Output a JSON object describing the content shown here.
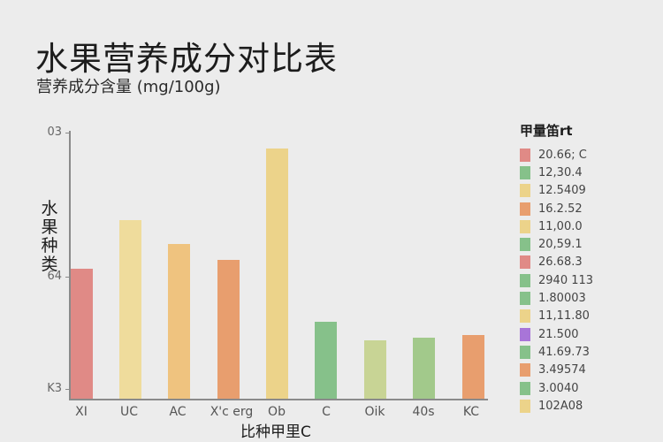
{
  "title": "水果营养成分对比表",
  "subtitle": "营养成分含量 (mg/100g)",
  "chart_data": {
    "type": "bar",
    "title": "水果营养成分对比表",
    "subtitle": "营养成分含量 (mg/100g)",
    "xlabel": "比种甲里C",
    "ylabel": "水果种类",
    "categories": [
      "XI",
      "UC",
      "AC",
      "X'c erg",
      "Ob",
      "C",
      "Oik",
      "40s",
      "KC"
    ],
    "values": [
      49,
      67,
      58,
      52,
      94,
      29,
      22,
      23,
      24
    ],
    "bar_colors": [
      "#e08a86",
      "#efdc9c",
      "#efc37f",
      "#e89e6e",
      "#ecd38a",
      "#86c18a",
      "#c8d495",
      "#a2c98b",
      "#e89e6e"
    ],
    "ylim": [
      0,
      100
    ],
    "yticks": [
      {
        "label": "03",
        "position": 100
      },
      {
        "label": "64",
        "position": 46
      },
      {
        "label": "K3",
        "position": 4
      }
    ],
    "grid": false,
    "legend_position": "right",
    "legend": {
      "title": "甲量笛rt",
      "entries": [
        {
          "label": "20.66; C",
          "color": "#e08a86"
        },
        {
          "label": "12,30.4",
          "color": "#86c18a"
        },
        {
          "label": "12.5409",
          "color": "#ecd38a"
        },
        {
          "label": "16.2.52",
          "color": "#e89e6e"
        },
        {
          "label": "11,00.0",
          "color": "#ecd38a"
        },
        {
          "label": "20,59.1",
          "color": "#86c18a"
        },
        {
          "label": "26.68.3",
          "color": "#e08a86"
        },
        {
          "label": "2940 113",
          "color": "#86c18a"
        },
        {
          "label": "1.80003",
          "color": "#86c18a"
        },
        {
          "label": "11,11.80",
          "color": "#ecd38a"
        },
        {
          "label": "21.500",
          "color": "#a875d8"
        },
        {
          "label": "41.69.73",
          "color": "#86c18a"
        },
        {
          "label": "3.49574",
          "color": "#e89e6e"
        },
        {
          "label": "3.0040",
          "color": "#86c18a"
        },
        {
          "label": "102A08",
          "color": "#ecd38a"
        }
      ]
    }
  },
  "layout": {
    "bar_lefts": [
      80,
      135,
      190,
      246,
      301,
      356,
      412,
      467,
      523
    ],
    "xtick_centers": [
      92,
      146,
      201,
      262,
      313,
      369,
      424,
      479,
      533
    ]
  }
}
